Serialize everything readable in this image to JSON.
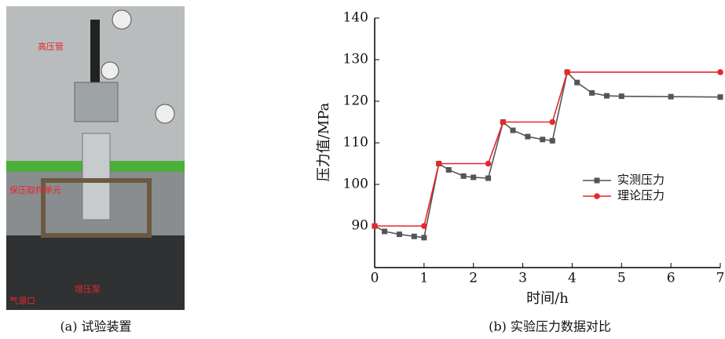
{
  "photo": {
    "caption": "(a) 试验装置",
    "labels": [
      "高压管",
      "保压取样单元",
      "增压泵",
      "气源口"
    ]
  },
  "chart_data": {
    "type": "line",
    "caption": "(b) 实验压力数据对比",
    "xlabel": "时间/h",
    "ylabel": "压力值/MPa",
    "xlim": [
      0,
      7
    ],
    "xticks": [
      0,
      1,
      2,
      3,
      4,
      5,
      6,
      7
    ],
    "ylim": [
      80,
      140
    ],
    "yticks": [
      90,
      100,
      110,
      120,
      130,
      140
    ],
    "legend": "right",
    "series": [
      {
        "name": "实测压力",
        "color": "#555555",
        "marker": "square",
        "x": [
          0,
          0.2,
          0.5,
          0.8,
          1,
          1.3,
          1.5,
          1.8,
          2.0,
          2.3,
          2.6,
          2.8,
          3.1,
          3.4,
          3.6,
          3.9,
          4.1,
          4.4,
          4.7,
          5,
          6,
          7
        ],
        "values": [
          90,
          88.7,
          88,
          87.5,
          87.2,
          105,
          103.5,
          102,
          101.7,
          101.5,
          115,
          113,
          111.5,
          110.8,
          110.5,
          127,
          124.5,
          122,
          121.3,
          121.2,
          121.1,
          121
        ]
      },
      {
        "name": "理论压力",
        "color": "#e8262b",
        "marker": "circle",
        "x": [
          0,
          1,
          1.3,
          2.3,
          2.6,
          3.6,
          3.9,
          7
        ],
        "values": [
          90,
          90,
          105,
          105,
          115,
          115,
          127,
          127
        ]
      }
    ]
  }
}
